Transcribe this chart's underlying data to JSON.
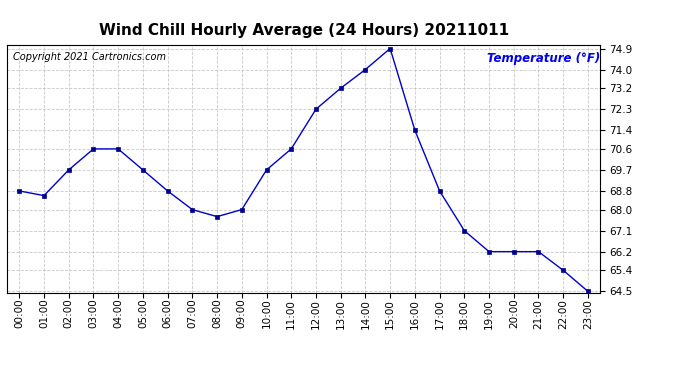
{
  "title": "Wind Chill Hourly Average (24 Hours) 20211011",
  "copyright_text": "Copyright 2021 Cartronics.com",
  "ylabel": "Temperature (°F)",
  "ylabel_color": "#0000ee",
  "line_color": "#0000cc",
  "marker_color": "#00008b",
  "background_color": "#ffffff",
  "grid_color": "#bbbbbb",
  "hours": [
    "00:00",
    "01:00",
    "02:00",
    "03:00",
    "04:00",
    "05:00",
    "06:00",
    "07:00",
    "08:00",
    "09:00",
    "10:00",
    "11:00",
    "12:00",
    "13:00",
    "14:00",
    "15:00",
    "16:00",
    "17:00",
    "18:00",
    "19:00",
    "20:00",
    "21:00",
    "22:00",
    "23:00"
  ],
  "values": [
    68.8,
    68.6,
    69.7,
    70.6,
    70.6,
    69.7,
    68.8,
    68.0,
    67.7,
    68.0,
    69.7,
    70.6,
    72.3,
    73.2,
    74.0,
    74.9,
    71.4,
    68.8,
    67.1,
    66.2,
    66.2,
    66.2,
    65.4,
    64.5
  ],
  "ylim_min": 64.5,
  "ylim_max": 74.9,
  "yticks": [
    74.9,
    74.0,
    73.2,
    72.3,
    71.4,
    70.6,
    69.7,
    68.8,
    68.0,
    67.1,
    66.2,
    65.4,
    64.5
  ],
  "title_fontsize": 11,
  "copyright_fontsize": 7,
  "ylabel_fontsize": 8.5,
  "tick_fontsize": 7.5
}
